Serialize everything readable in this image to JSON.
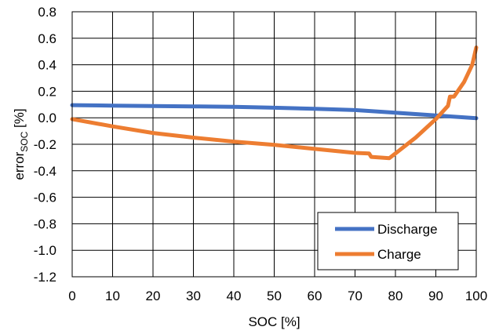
{
  "chart_data": {
    "type": "line",
    "title": "",
    "xlabel": "SOC [%]",
    "ylabel": {
      "main": "error",
      "subscript": "SOC",
      "suffix": " [%]"
    },
    "xlim": [
      0,
      100
    ],
    "ylim": [
      -1.2,
      0.8
    ],
    "x_ticks": [
      "0",
      "10",
      "20",
      "30",
      "40",
      "50",
      "60",
      "70",
      "80",
      "90",
      "100"
    ],
    "x_tick_values": [
      0,
      10,
      20,
      30,
      40,
      50,
      60,
      70,
      80,
      90,
      100
    ],
    "y_ticks": [
      "0.8",
      "0.6",
      "0.4",
      "0.2",
      "0.0",
      "-0.2",
      "-0.4",
      "-0.6",
      "-0.8",
      "-1.0",
      "-1.2"
    ],
    "y_tick_values": [
      0.8,
      0.6,
      0.4,
      0.2,
      0.0,
      -0.2,
      -0.4,
      -0.6,
      -0.8,
      -1.0,
      -1.2
    ],
    "grid": true,
    "legend_position": "bottom-right",
    "series": [
      {
        "name": "Discharge",
        "color": "#4472C4",
        "x": [
          0,
          10,
          20,
          30,
          40,
          50,
          60,
          70,
          80,
          90,
          100
        ],
        "y": [
          0.095,
          0.092,
          0.088,
          0.086,
          0.082,
          0.076,
          0.068,
          0.058,
          0.038,
          0.018,
          -0.003
        ]
      },
      {
        "name": "Charge",
        "color": "#ED7D31",
        "x": [
          0,
          10,
          20,
          30,
          40,
          50,
          60,
          70,
          73.5,
          74,
          78.5,
          85,
          90,
          93,
          93.5,
          94.5,
          97,
          99,
          100
        ],
        "y": [
          -0.01,
          -0.065,
          -0.115,
          -0.15,
          -0.18,
          -0.205,
          -0.235,
          -0.265,
          -0.27,
          -0.295,
          -0.305,
          -0.15,
          -0.01,
          0.09,
          0.16,
          0.16,
          0.27,
          0.4,
          0.53
        ]
      }
    ]
  }
}
